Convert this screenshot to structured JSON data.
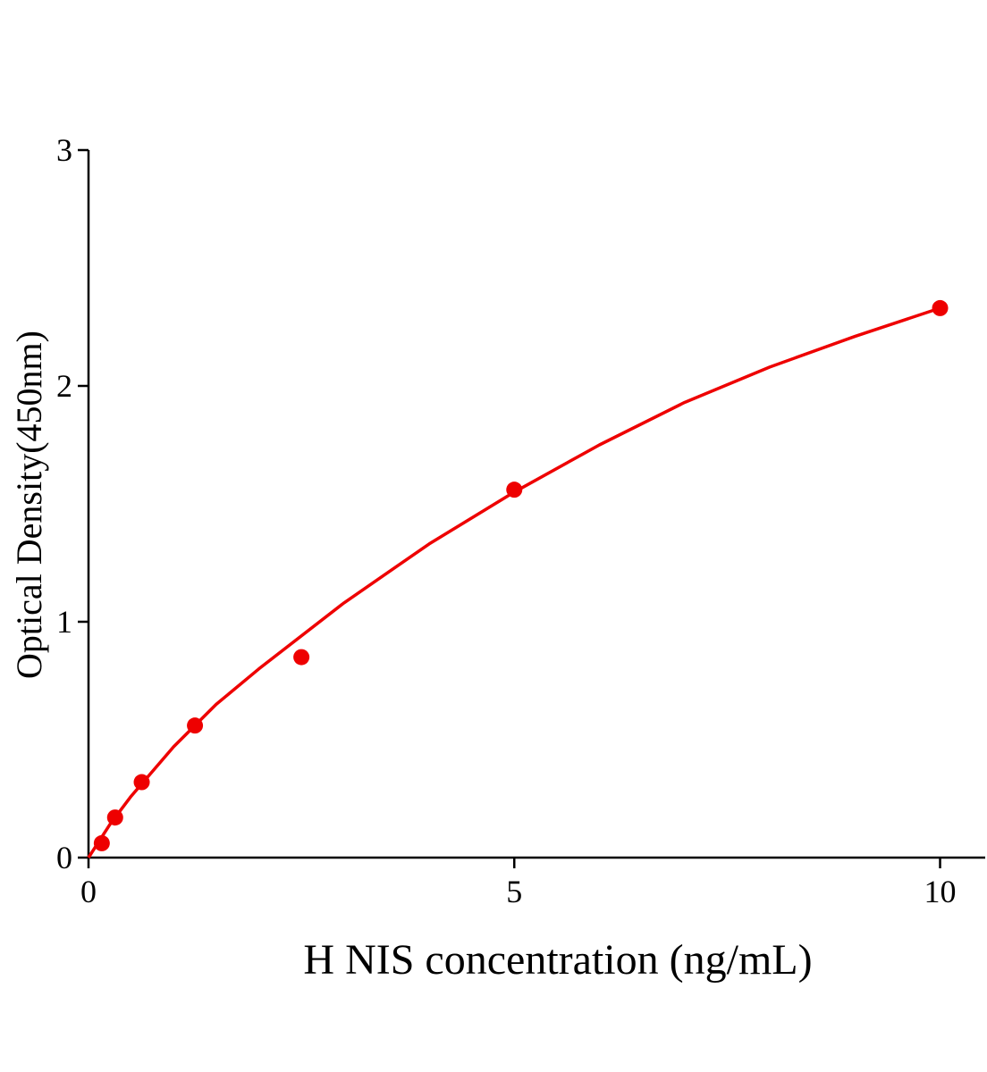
{
  "chart_data": {
    "type": "scatter",
    "x_label": "H NIS concentration (ng/mL)",
    "y_label": "Optical Density(450nm)",
    "xlim": [
      0,
      10.53
    ],
    "ylim": [
      0,
      3
    ],
    "xticks": [
      0,
      5,
      10
    ],
    "yticks": [
      0,
      1,
      2,
      3
    ],
    "color": "#ee0000",
    "points": {
      "x": [
        0.156,
        0.3125,
        0.625,
        1.25,
        2.5,
        5,
        10
      ],
      "values": [
        0.061,
        0.17,
        0.32,
        0.56,
        0.85,
        1.56,
        2.33
      ]
    },
    "fit": {
      "x": [
        0,
        0.25,
        0.5,
        1,
        1.5,
        2,
        3,
        4,
        5,
        6,
        7,
        8,
        9,
        10
      ],
      "values": [
        0,
        0.14,
        0.26,
        0.47,
        0.65,
        0.8,
        1.08,
        1.33,
        1.55,
        1.75,
        1.93,
        2.08,
        2.21,
        2.33
      ]
    }
  }
}
